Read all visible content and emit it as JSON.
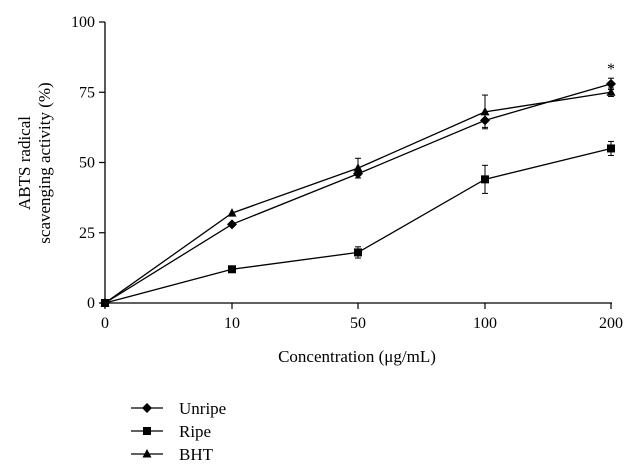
{
  "chart_data": {
    "type": "line",
    "title": "",
    "xlabel": "Concentration (μg/mL)",
    "ylabel_line1": "ABTS radical",
    "ylabel_line2": "scavenging activity (%)",
    "categories": [
      "0",
      "10",
      "50",
      "100",
      "200"
    ],
    "ylim": [
      0,
      100
    ],
    "yticks": [
      "0",
      "25",
      "50",
      "75",
      "100"
    ],
    "grid": false,
    "legend_position": "bottom-left",
    "annotation": "*",
    "series": [
      {
        "name": "Unripe",
        "marker": "diamond",
        "values": [
          0,
          28,
          46,
          65,
          78
        ],
        "errors": [
          0,
          0,
          1.5,
          2.5,
          2
        ]
      },
      {
        "name": "Ripe",
        "marker": "square",
        "values": [
          0,
          12,
          18,
          44,
          55
        ],
        "errors": [
          0,
          0,
          2,
          5,
          2.5
        ]
      },
      {
        "name": "BHT",
        "marker": "triangle",
        "values": [
          0,
          32,
          48,
          68,
          75
        ],
        "errors": [
          0,
          0,
          3.5,
          6,
          1.5
        ]
      }
    ]
  }
}
